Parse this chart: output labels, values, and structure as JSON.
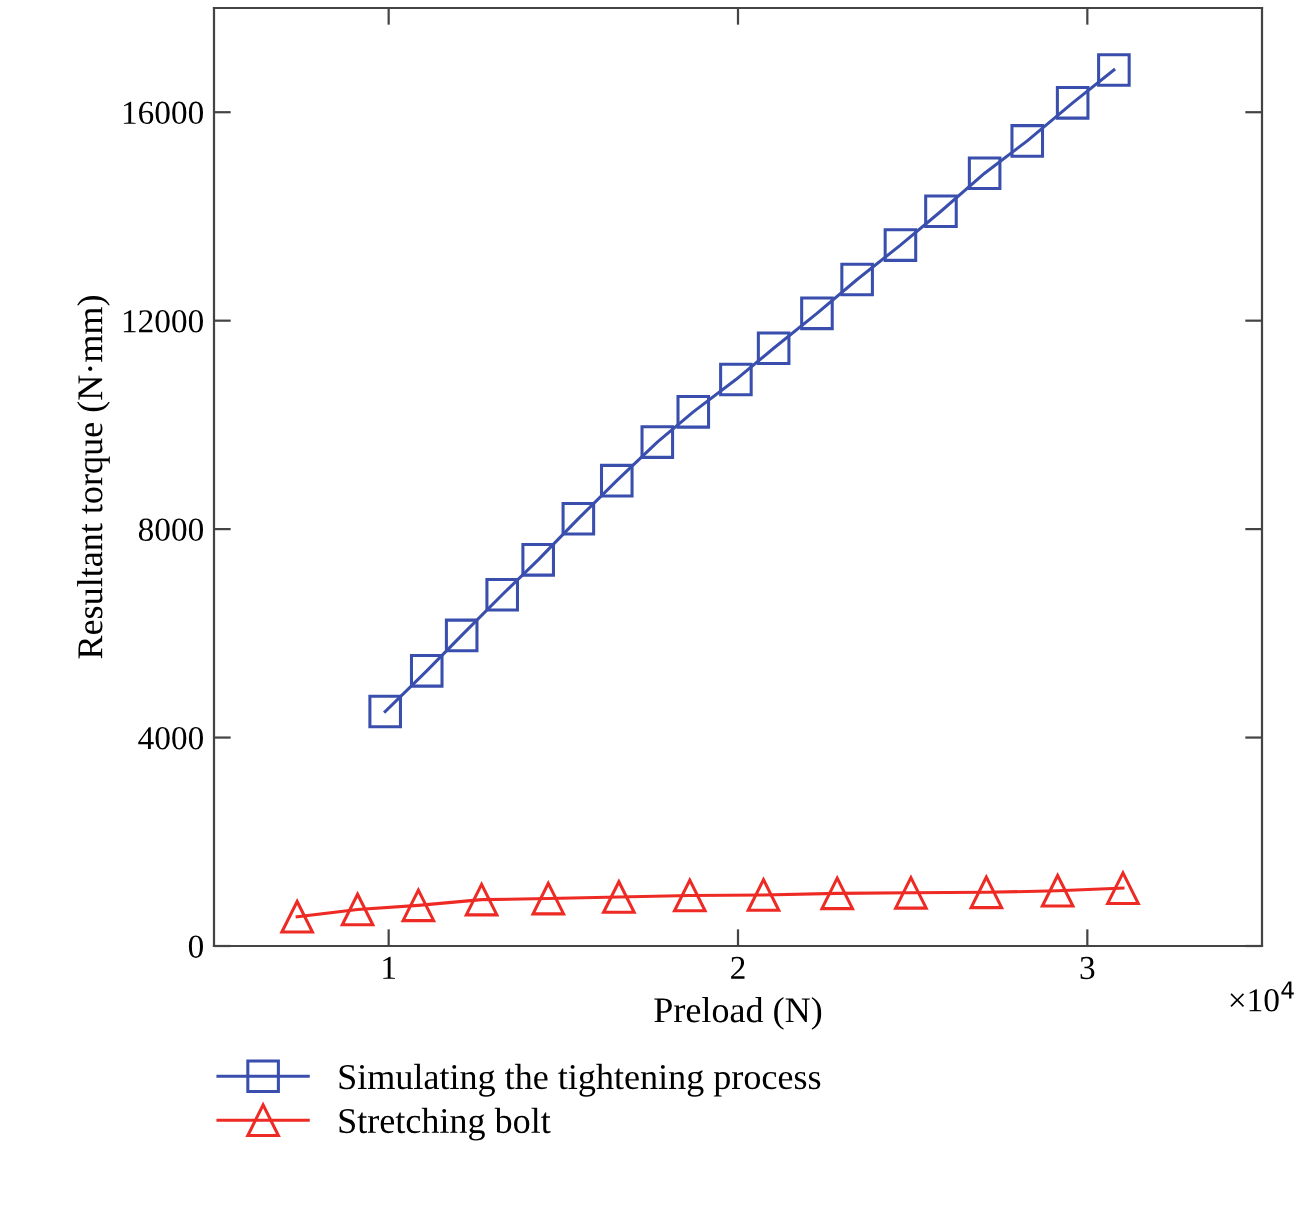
{
  "chart_data": {
    "type": "line",
    "xlabel": "Preload (N)",
    "ylabel": "Resultant torque (N·mm)",
    "xlim": [
      0.5,
      3.5
    ],
    "xticks": [
      1,
      2,
      3
    ],
    "ylim": [
      0,
      18000
    ],
    "yticks": [
      0,
      4000,
      8000,
      12000,
      16000
    ],
    "annotations": [
      "×10$^{4}$"
    ],
    "legend": "bottom",
    "grid": false,
    "line_style": "solid",
    "series": [
      {
        "name": "Simulating the tightening process",
        "color": "#3a4fad",
        "marker": "square",
        "x": [
          0.99,
          1.109,
          1.209,
          1.325,
          1.428,
          1.543,
          1.653,
          1.769,
          1.872,
          1.994,
          2.102,
          2.226,
          2.341,
          2.465,
          2.581,
          2.706,
          2.828,
          2.958,
          3.076
        ],
        "values": [
          4500,
          5280,
          5960,
          6740,
          7410,
          8200,
          8930,
          9670,
          10250,
          10870,
          11470,
          12140,
          12790,
          13450,
          14100,
          14830,
          15450,
          16180,
          16810
        ]
      },
      {
        "name": "Stretching bolt",
        "color": "#ee2a24",
        "marker": "triangle",
        "x": [
          0.738,
          0.911,
          1.085,
          1.266,
          1.457,
          1.659,
          1.862,
          2.073,
          2.284,
          2.495,
          2.711,
          2.915,
          3.102
        ],
        "values": [
          560,
          700,
          780,
          890,
          910,
          940,
          970,
          980,
          1010,
          1020,
          1030,
          1060,
          1110
        ]
      }
    ]
  }
}
